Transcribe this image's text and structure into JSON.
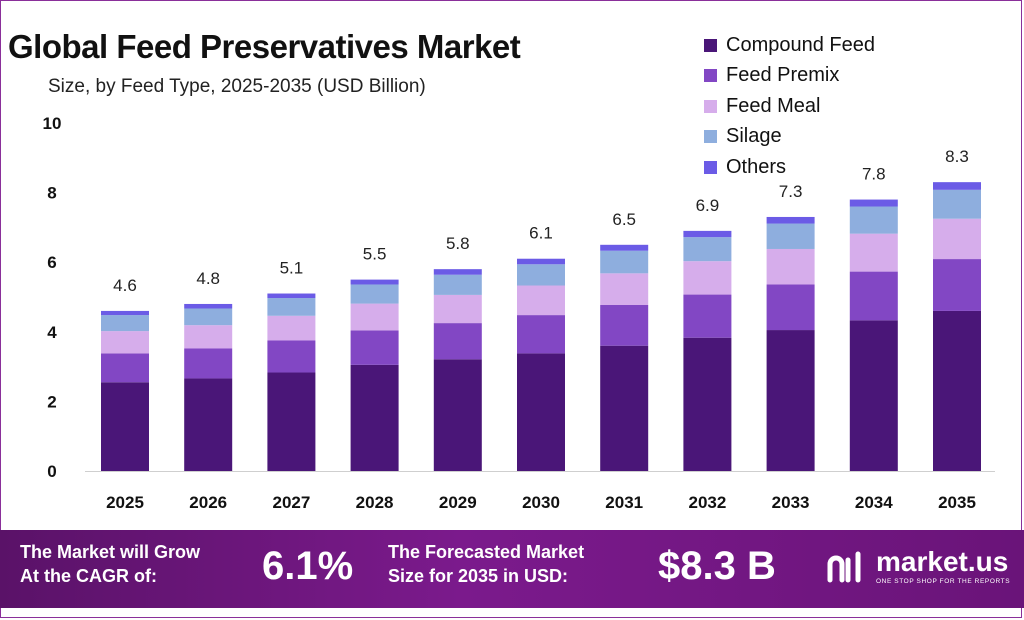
{
  "header": {
    "title": "Global Feed Preservatives Market",
    "subtitle": "Size, by Feed Type, 2025-2035 (USD Billion)"
  },
  "legend": [
    {
      "label": "Compound Feed",
      "color": "#4a1678"
    },
    {
      "label": "Feed Premix",
      "color": "#8247c4"
    },
    {
      "label": "Feed Meal",
      "color": "#d6adeb"
    },
    {
      "label": "Silage",
      "color": "#8eaede"
    },
    {
      "label": "Others",
      "color": "#6b5be6"
    }
  ],
  "chart_data": {
    "type": "bar",
    "stacked": true,
    "categories": [
      "2025",
      "2026",
      "2027",
      "2028",
      "2029",
      "2030",
      "2031",
      "2032",
      "2033",
      "2034",
      "2035"
    ],
    "series": [
      {
        "name": "Compound Feed",
        "color": "#4a1678",
        "values": [
          2.55,
          2.66,
          2.83,
          3.05,
          3.21,
          3.38,
          3.6,
          3.83,
          4.05,
          4.33,
          4.6
        ]
      },
      {
        "name": "Feed Premix",
        "color": "#8247c4",
        "values": [
          0.83,
          0.86,
          0.92,
          0.99,
          1.04,
          1.1,
          1.17,
          1.24,
          1.31,
          1.4,
          1.49
        ]
      },
      {
        "name": "Feed Meal",
        "color": "#d6adeb",
        "values": [
          0.64,
          0.67,
          0.71,
          0.77,
          0.81,
          0.85,
          0.91,
          0.96,
          1.02,
          1.09,
          1.16
        ]
      },
      {
        "name": "Silage",
        "color": "#8eaede",
        "values": [
          0.46,
          0.48,
          0.51,
          0.55,
          0.58,
          0.61,
          0.65,
          0.69,
          0.73,
          0.78,
          0.83
        ]
      },
      {
        "name": "Others",
        "color": "#6b5be6",
        "values": [
          0.12,
          0.13,
          0.13,
          0.14,
          0.16,
          0.16,
          0.17,
          0.18,
          0.19,
          0.2,
          0.22
        ]
      }
    ],
    "totals": [
      "4.6",
      "4.8",
      "5.1",
      "5.5",
      "5.8",
      "6.1",
      "6.5",
      "6.9",
      "7.3",
      "7.8",
      "8.3"
    ],
    "ylim": [
      0,
      10
    ],
    "yticks": [
      "0",
      "2",
      "4",
      "6",
      "8",
      "10"
    ],
    "grid": false,
    "legend_position": "top-right"
  },
  "footer": {
    "cagr_label_line1": "The Market will Grow",
    "cagr_label_line2": "At the CAGR of:",
    "cagr_value": "6.1%",
    "forecast_label_line1": "The Forecasted Market",
    "forecast_label_line2": "Size for 2035 in USD:",
    "forecast_value": "$8.3 B",
    "brand_name": "market.us",
    "brand_tagline": "ONE STOP SHOP FOR THE REPORTS"
  }
}
